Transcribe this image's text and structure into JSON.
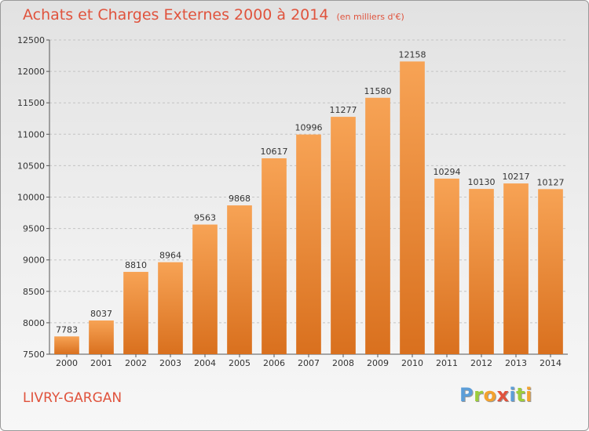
{
  "chart_data": {
    "type": "bar",
    "title": "Achats et Charges Externes 2000 à 2014",
    "subtitle": "(en milliers d'€)",
    "categories": [
      "2000",
      "2001",
      "2002",
      "2003",
      "2004",
      "2005",
      "2006",
      "2007",
      "2008",
      "2009",
      "2010",
      "2011",
      "2012",
      "2013",
      "2014"
    ],
    "values": [
      7783,
      8037,
      8810,
      8964,
      9563,
      9868,
      10617,
      10996,
      11277,
      11580,
      12158,
      10294,
      10130,
      10217,
      10127
    ],
    "ylim": [
      7500,
      12500
    ],
    "yticks": [
      7500,
      8000,
      8500,
      9000,
      9500,
      10000,
      10500,
      11000,
      11500,
      12000,
      12500
    ],
    "grid": "horizontal dashed",
    "legend": "none",
    "colors": {
      "bar_light": "#f7a355",
      "bar_dark": "#d9701e",
      "title": "#e0533d"
    }
  },
  "footer": {
    "city": "LIVRY-GARGAN",
    "logo_letters": [
      {
        "char": "P",
        "color": "#5c9ed8"
      },
      {
        "char": "r",
        "color": "#9ccd3b"
      },
      {
        "char": "o",
        "color": "#f3a22e"
      },
      {
        "char": "x",
        "color": "#e0533d"
      },
      {
        "char": "i",
        "color": "#5c9ed8"
      },
      {
        "char": "t",
        "color": "#9ccd3b"
      },
      {
        "char": "i",
        "color": "#f3a22e"
      }
    ]
  }
}
